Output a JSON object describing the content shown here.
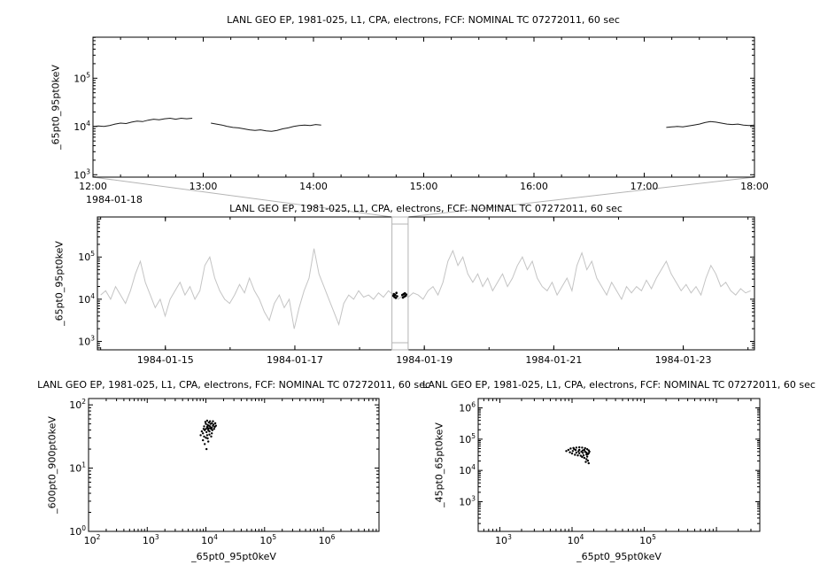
{
  "window": {
    "background": "#ffffff",
    "axis_color": "#000000",
    "muted_color": "#b4b4b4",
    "series_dark_color": "#1a1a1a",
    "series_gray_color": "#c4c4c4",
    "point_color": "#000000"
  },
  "chart_data": [
    {
      "id": "overview-timeseries",
      "type": "line",
      "title": "LANL GEO EP, 1981-025, L1, CPA, electrons, FCF: NOMINAL TC 07272011, 60 sec",
      "ylabel": "_65pt0_95pt0keV",
      "xlabel": "",
      "x_date_label": "1984-01-18",
      "x_unit": "time of day",
      "xlim": [
        12,
        18
      ],
      "x_major_ticks": [
        {
          "v": 12,
          "label": "12:00"
        },
        {
          "v": 13,
          "label": "13:00"
        },
        {
          "v": 14,
          "label": "14:00"
        },
        {
          "v": 15,
          "label": "15:00"
        },
        {
          "v": 16,
          "label": "16:00"
        },
        {
          "v": 17,
          "label": "17:00"
        },
        {
          "v": 18,
          "label": "18:00"
        }
      ],
      "x_minor_step": 0.25,
      "y_scale": "log",
      "ylim_log10": [
        2.95,
        5.85
      ],
      "y_labeled_decades": [
        3,
        4,
        5
      ],
      "line_color": "#1a1a1a",
      "segments": [
        {
          "t_start": 12.0,
          "t_step": 0.05,
          "y_log10": [
            4.0,
            4.01,
            4.0,
            4.02,
            4.05,
            4.07,
            4.06,
            4.09,
            4.11,
            4.1,
            4.13,
            4.15,
            4.14,
            4.16,
            4.17,
            4.15,
            4.17,
            4.16,
            4.17
          ]
        },
        {
          "t_start": 13.07,
          "t_step": 0.05,
          "y_log10": [
            4.07,
            4.05,
            4.03,
            4.0,
            3.98,
            3.97,
            3.95,
            3.93,
            3.92,
            3.93,
            3.91,
            3.9,
            3.92,
            3.95,
            3.97,
            4.0,
            4.02,
            4.03,
            4.02,
            4.04,
            4.03
          ]
        },
        {
          "t_start": 17.2,
          "t_step": 0.05,
          "y_log10": [
            3.98,
            3.99,
            4.0,
            3.99,
            4.01,
            4.03,
            4.05,
            4.08,
            4.1,
            4.09,
            4.07,
            4.05,
            4.04,
            4.05,
            4.03,
            4.02,
            4.03
          ]
        }
      ]
    },
    {
      "id": "context-timeseries",
      "type": "line",
      "title": "LANL GEO EP, 1981-025, L1, CPA, electrons, FCF: NOMINAL TC 07272011, 60 sec",
      "ylabel": "_65pt0_95pt0keV",
      "xlabel": "",
      "x_unit": "day of 1984-01",
      "xlim": [
        13.95,
        24.1
      ],
      "x_major_ticks": [
        {
          "v": 15,
          "label": "1984-01-15"
        },
        {
          "v": 17,
          "label": "1984-01-17"
        },
        {
          "v": 19,
          "label": "1984-01-19"
        },
        {
          "v": 21,
          "label": "1984-01-21"
        },
        {
          "v": 23,
          "label": "1984-01-23"
        }
      ],
      "x_minor_step": 1,
      "y_scale": "log",
      "ylim_log10": [
        2.8,
        5.95
      ],
      "y_labeled_decades": [
        3,
        4,
        5
      ],
      "line_color": "#c4c4c4",
      "highlight_interval": [
        18.5,
        18.75
      ],
      "highlight_points": [
        [
          18.52,
          4.08
        ],
        [
          18.53,
          4.12
        ],
        [
          18.54,
          4.05
        ],
        [
          18.55,
          4.1
        ],
        [
          18.56,
          4.03
        ],
        [
          18.57,
          4.15
        ],
        [
          18.58,
          4.07
        ],
        [
          18.66,
          4.1
        ],
        [
          18.67,
          4.04
        ],
        [
          18.68,
          4.12
        ],
        [
          18.69,
          4.06
        ],
        [
          18.7,
          4.14
        ],
        [
          18.71,
          4.08
        ],
        [
          18.72,
          4.11
        ]
      ],
      "series": {
        "t_start": 14.0,
        "t_end": 24.04,
        "y_log10": [
          4.1,
          4.2,
          4.0,
          4.3,
          4.1,
          3.9,
          4.2,
          4.6,
          4.9,
          4.4,
          4.1,
          3.8,
          4.0,
          3.6,
          4.0,
          4.2,
          4.4,
          4.1,
          4.3,
          4.0,
          4.2,
          4.8,
          5.0,
          4.5,
          4.2,
          4.0,
          3.9,
          4.1,
          4.35,
          4.15,
          4.5,
          4.2,
          4.0,
          3.7,
          3.5,
          3.9,
          4.1,
          3.8,
          4.0,
          3.3,
          3.8,
          4.2,
          4.5,
          5.2,
          4.6,
          4.3,
          4.0,
          3.7,
          3.4,
          3.9,
          4.1,
          4.0,
          4.2,
          4.05,
          4.1,
          4.0,
          4.15,
          4.05,
          4.2,
          4.1,
          4.0,
          4.1,
          4.05,
          4.15,
          4.1,
          4.0,
          4.2,
          4.3,
          4.1,
          4.4,
          4.9,
          5.15,
          4.8,
          5.0,
          4.6,
          4.4,
          4.6,
          4.3,
          4.5,
          4.2,
          4.4,
          4.6,
          4.3,
          4.5,
          4.8,
          5.0,
          4.7,
          4.9,
          4.5,
          4.3,
          4.2,
          4.4,
          4.1,
          4.3,
          4.5,
          4.2,
          4.8,
          5.1,
          4.7,
          4.9,
          4.5,
          4.3,
          4.1,
          4.4,
          4.2,
          4.0,
          4.3,
          4.15,
          4.3,
          4.2,
          4.45,
          4.25,
          4.5,
          4.7,
          4.9,
          4.6,
          4.4,
          4.2,
          4.35,
          4.15,
          4.3,
          4.1,
          4.5,
          4.8,
          4.6,
          4.3,
          4.4,
          4.2,
          4.1,
          4.25,
          4.15,
          4.2
        ]
      }
    },
    {
      "id": "scatter-600-900",
      "type": "scatter",
      "title": "LANL GEO EP, 1981-025, L1, CPA, electrons, FCF: NOMINAL TC 07272011, 60 sec",
      "xlabel": "_65pt0_95pt0keV",
      "ylabel": "_600pt0_900pt0keV",
      "xlim_log10": [
        2,
        6.95
      ],
      "ylim_log10": [
        0,
        2.1
      ],
      "x_labeled_exponents": [
        2,
        3,
        4,
        5,
        6
      ],
      "y_labeled_exponents": [
        0,
        1,
        2
      ],
      "points_log10": [
        [
          3.95,
          1.55
        ],
        [
          3.98,
          1.6
        ],
        [
          4.0,
          1.62
        ],
        [
          4.02,
          1.65
        ],
        [
          4.05,
          1.63
        ],
        [
          4.07,
          1.66
        ],
        [
          4.1,
          1.64
        ],
        [
          4.12,
          1.67
        ],
        [
          4.08,
          1.7
        ],
        [
          4.03,
          1.68
        ],
        [
          4.0,
          1.7
        ],
        [
          3.97,
          1.66
        ],
        [
          4.05,
          1.72
        ],
        [
          4.1,
          1.71
        ],
        [
          4.13,
          1.69
        ],
        [
          4.15,
          1.65
        ],
        [
          4.11,
          1.6
        ],
        [
          4.06,
          1.58
        ],
        [
          4.01,
          1.57
        ],
        [
          3.96,
          1.62
        ],
        [
          4.04,
          1.6
        ],
        [
          4.09,
          1.62
        ],
        [
          4.14,
          1.62
        ],
        [
          4.17,
          1.67
        ],
        [
          4.07,
          1.74
        ],
        [
          4.02,
          1.75
        ],
        [
          3.99,
          1.73
        ],
        [
          4.12,
          1.74
        ],
        [
          4.16,
          1.71
        ],
        [
          4.05,
          1.67
        ],
        [
          4.08,
          1.63
        ],
        [
          4.03,
          1.63
        ],
        [
          3.93,
          1.58
        ],
        [
          3.91,
          1.52
        ],
        [
          3.97,
          1.5
        ],
        [
          4.02,
          1.52
        ],
        [
          4.06,
          1.53
        ],
        [
          4.1,
          1.55
        ],
        [
          4.0,
          1.48
        ],
        [
          3.95,
          1.44
        ],
        [
          4.04,
          1.42
        ],
        [
          3.98,
          1.38
        ],
        [
          4.01,
          1.3
        ],
        [
          4.03,
          1.47
        ],
        [
          4.09,
          1.5
        ]
      ]
    },
    {
      "id": "scatter-45-65",
      "type": "scatter",
      "title": "LANL GEO EP, 1981-025, L1, CPA, electrons, FCF: NOMINAL TC 07272011, 60 sec",
      "xlabel": "_65pt0_95pt0keV",
      "ylabel": "_45pt0_65pt0keV",
      "xlim_log10": [
        2.7,
        6.6
      ],
      "ylim_log10": [
        2.05,
        6.3
      ],
      "x_labeled_exponents": [
        3,
        4,
        5
      ],
      "y_labeled_exponents": [
        3,
        4,
        5,
        6
      ],
      "points_log10": [
        [
          3.92,
          4.62
        ],
        [
          3.95,
          4.66
        ],
        [
          3.98,
          4.7
        ],
        [
          4.02,
          4.72
        ],
        [
          4.06,
          4.73
        ],
        [
          4.1,
          4.74
        ],
        [
          4.14,
          4.73
        ],
        [
          4.18,
          4.71
        ],
        [
          4.21,
          4.68
        ],
        [
          4.23,
          4.64
        ],
        [
          4.24,
          4.6
        ],
        [
          4.23,
          4.55
        ],
        [
          4.2,
          4.51
        ],
        [
          4.16,
          4.48
        ],
        [
          4.12,
          4.47
        ],
        [
          4.08,
          4.48
        ],
        [
          4.04,
          4.5
        ],
        [
          4.0,
          4.54
        ],
        [
          3.97,
          4.58
        ],
        [
          4.01,
          4.62
        ],
        [
          4.05,
          4.65
        ],
        [
          4.1,
          4.66
        ],
        [
          4.15,
          4.64
        ],
        [
          4.18,
          4.6
        ],
        [
          4.15,
          4.56
        ],
        [
          4.1,
          4.55
        ],
        [
          4.06,
          4.57
        ],
        [
          4.09,
          4.61
        ],
        [
          4.13,
          4.6
        ],
        [
          4.17,
          4.66
        ],
        [
          4.03,
          4.68
        ],
        [
          4.2,
          4.57
        ],
        [
          4.22,
          4.52
        ],
        [
          4.14,
          4.43
        ],
        [
          4.17,
          4.4
        ],
        [
          4.2,
          4.36
        ],
        [
          4.22,
          4.31
        ],
        [
          4.19,
          4.27
        ],
        [
          4.23,
          4.23
        ],
        [
          4.21,
          4.44
        ]
      ]
    }
  ]
}
